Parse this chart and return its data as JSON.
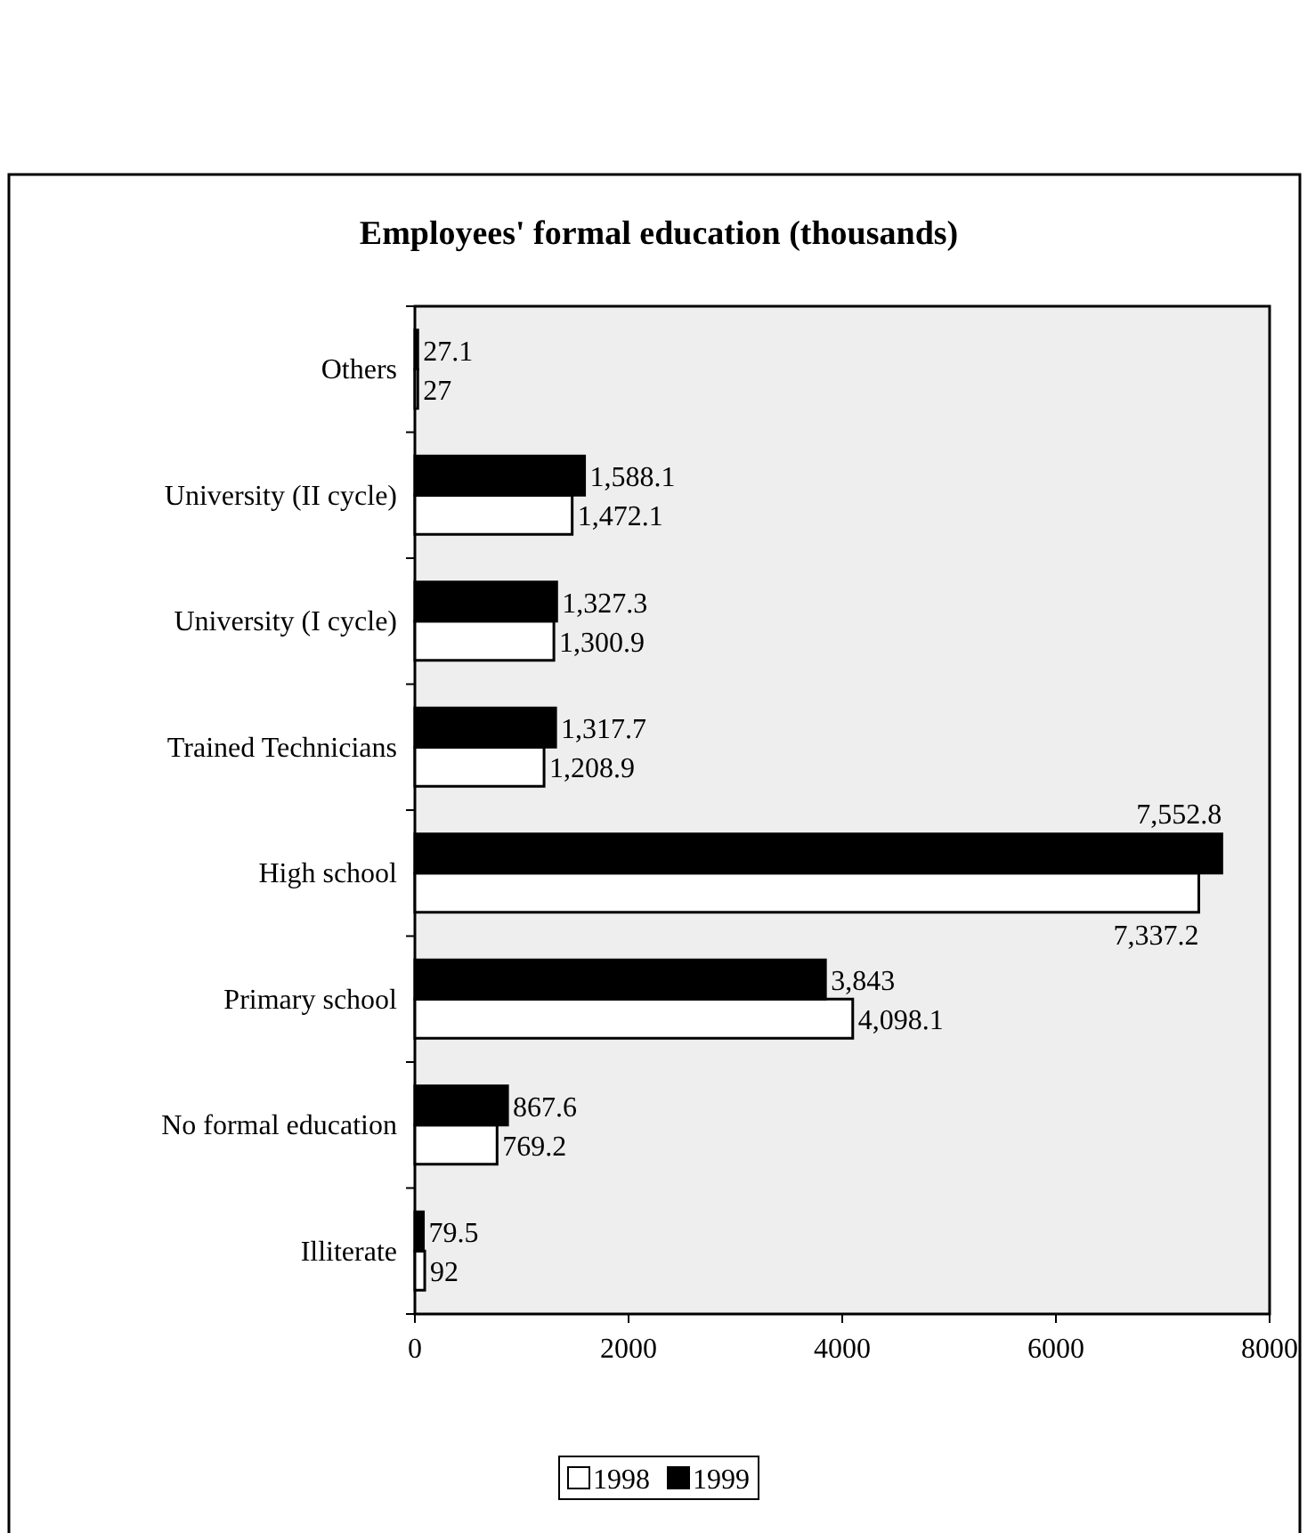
{
  "chart_data": {
    "type": "bar",
    "orientation": "horizontal",
    "title": "Employees' formal education (thousands)",
    "categories": [
      "Others",
      "University (II cycle)",
      "University (I cycle)",
      "Trained Technicians",
      "High school",
      "Primary school",
      "No formal education",
      "Illiterate"
    ],
    "series": [
      {
        "name": "1998",
        "color": "#ffffff",
        "values": [
          27,
          1472.1,
          1300.9,
          1208.9,
          7337.2,
          4098.1,
          769.2,
          92
        ],
        "value_labels": [
          "27",
          "1,472.1",
          "1,300.9",
          "1,208.9",
          "7,337.2",
          "4,098.1",
          "769.2",
          "92"
        ]
      },
      {
        "name": "1999",
        "color": "#000000",
        "values": [
          27.1,
          1588.1,
          1327.3,
          1317.7,
          7552.8,
          3843,
          867.6,
          79.5
        ],
        "value_labels": [
          "27.1",
          "1,588.1",
          "1,327.3",
          "1,317.7",
          "7,552.8",
          "3,843",
          "867.6",
          "79.5"
        ]
      }
    ],
    "xlim": [
      0,
      8000
    ],
    "xticks": [
      0,
      2000,
      4000,
      6000,
      8000
    ],
    "grid": false,
    "legend": "bottom"
  }
}
